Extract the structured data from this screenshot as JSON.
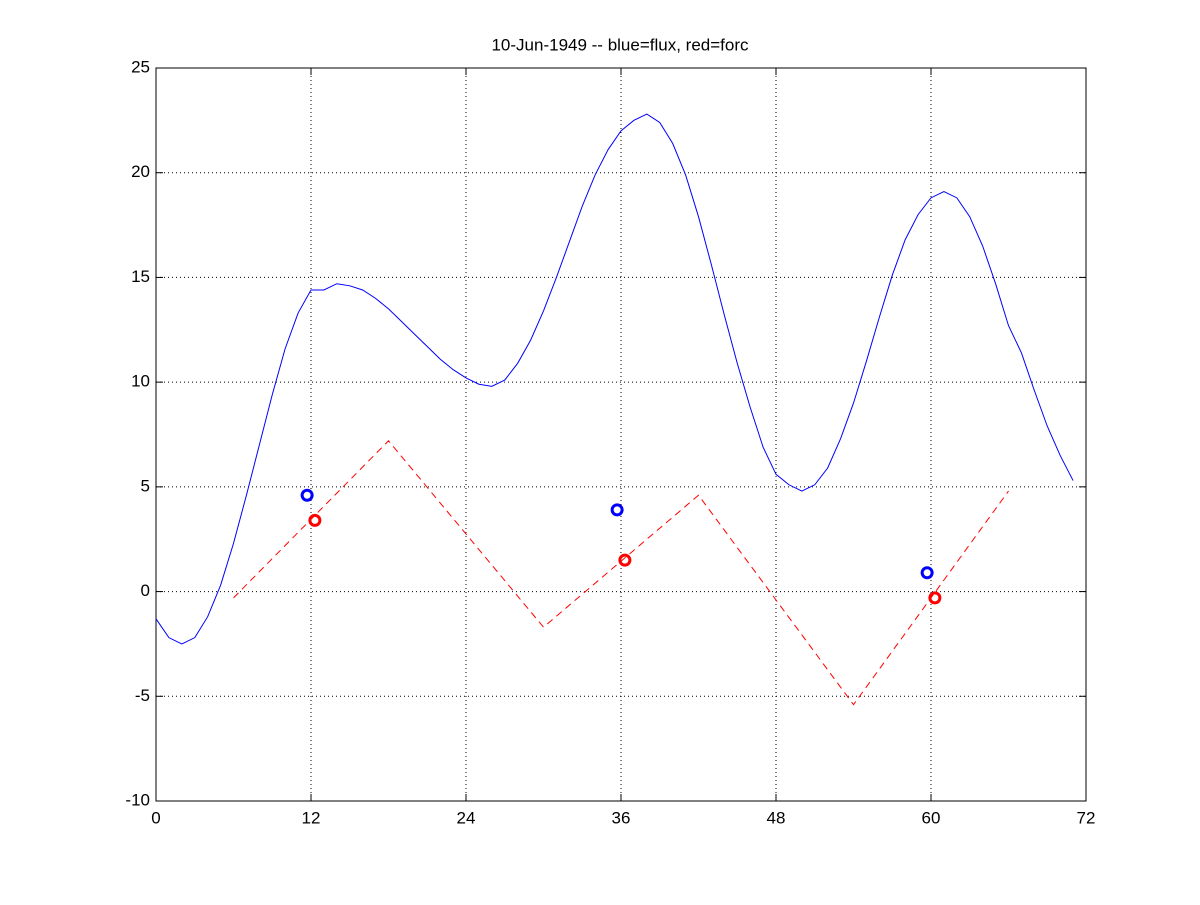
{
  "chart_data": {
    "type": "line",
    "title": "10-Jun-1949 -- blue=flux, red=forc",
    "xlim": [
      0,
      72
    ],
    "xticks": [
      0,
      12,
      24,
      36,
      48,
      60,
      72
    ],
    "ylim": [
      -10,
      25
    ],
    "yticks": [
      -10,
      -5,
      0,
      5,
      10,
      15,
      20,
      25
    ],
    "grid": true,
    "series": [
      {
        "color": "#0000ff",
        "linestyle": "solid",
        "marker": "none",
        "x": [
          0,
          1,
          2,
          3,
          4,
          5,
          6,
          7,
          8,
          9,
          10,
          11,
          12,
          13,
          14,
          15,
          16,
          17,
          18,
          19,
          20,
          21,
          22,
          23,
          24,
          25,
          26,
          27,
          28,
          29,
          30,
          31,
          32,
          33,
          34,
          35,
          36,
          37,
          38,
          39,
          40,
          41,
          42,
          43,
          44,
          45,
          46,
          47,
          48,
          49,
          50,
          51,
          52,
          53,
          54,
          55,
          56,
          57,
          58,
          59,
          60,
          61,
          62,
          63,
          64,
          65,
          66,
          67,
          68,
          69,
          70,
          71
        ],
        "values": [
          -1.3,
          -2.2,
          -2.5,
          -2.2,
          -1.2,
          0.3,
          2.3,
          4.6,
          7.0,
          9.4,
          11.6,
          13.3,
          14.4,
          14.4,
          14.7,
          14.6,
          14.4,
          14.0,
          13.5,
          12.9,
          12.3,
          11.7,
          11.1,
          10.6,
          10.2,
          9.9,
          9.8,
          10.1,
          10.9,
          12.0,
          13.4,
          15.0,
          16.7,
          18.4,
          19.9,
          21.1,
          22.0,
          22.5,
          22.8,
          22.4,
          21.4,
          19.9,
          17.9,
          15.6,
          13.2,
          10.9,
          8.8,
          6.9,
          5.6,
          5.1,
          4.8,
          5.1,
          5.9,
          7.3,
          9.0,
          11.0,
          13.1,
          15.1,
          16.8,
          18.0,
          18.8,
          19.1,
          18.8,
          17.9,
          16.5,
          14.7,
          12.7,
          11.4,
          9.6,
          7.9,
          6.5,
          5.3
        ]
      },
      {
        "color": "#ff0000",
        "linestyle": "dashed",
        "marker": "none",
        "x": [
          6,
          18,
          30,
          42,
          54,
          66
        ],
        "values": [
          -0.3,
          7.2,
          -1.7,
          4.6,
          -5.4,
          4.8
        ]
      },
      {
        "color": "#0000ff",
        "linestyle": "none",
        "marker": "circle",
        "x": [
          11.7,
          35.7,
          59.7
        ],
        "values": [
          4.6,
          3.9,
          0.9
        ]
      },
      {
        "color": "#ff0000",
        "linestyle": "none",
        "marker": "circle",
        "x": [
          12.3,
          36.3,
          60.3
        ],
        "values": [
          3.4,
          1.5,
          -0.3
        ]
      }
    ]
  }
}
